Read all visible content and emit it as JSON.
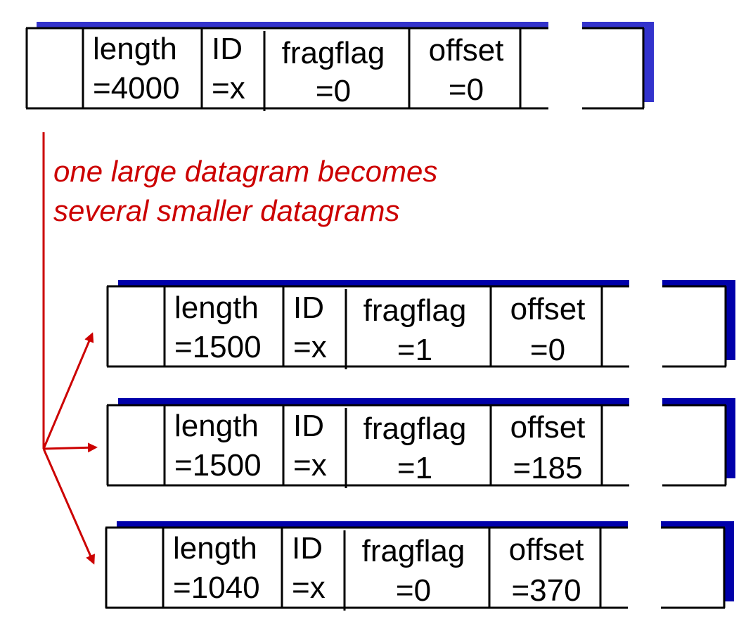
{
  "colors": {
    "shadow": "#0000aa",
    "shadow_top": "#3333cc",
    "border": "#000000",
    "arrow": "#cc0000",
    "caption": "#cc0000"
  },
  "original_datagram": {
    "length_label": "length",
    "length_value": "=4000",
    "id_label": "ID",
    "id_value": "=x",
    "fragflag_label": "fragflag",
    "fragflag_value": "=0",
    "offset_label": "offset",
    "offset_value": "=0"
  },
  "caption": {
    "line1": "one large datagram becomes",
    "line2": "several smaller datagrams"
  },
  "fragments": [
    {
      "length_label": "length",
      "length_value": "=1500",
      "id_label": "ID",
      "id_value": "=x",
      "fragflag_label": "fragflag",
      "fragflag_value": "=1",
      "offset_label": "offset",
      "offset_value": "=0"
    },
    {
      "length_label": "length",
      "length_value": "=1500",
      "id_label": "ID",
      "id_value": "=x",
      "fragflag_label": "fragflag",
      "fragflag_value": "=1",
      "offset_label": "offset",
      "offset_value": "=185"
    },
    {
      "length_label": "length",
      "length_value": "=1040",
      "id_label": "ID",
      "id_value": "=x",
      "fragflag_label": "fragflag",
      "fragflag_value": "=0",
      "offset_label": "offset",
      "offset_value": "=370"
    }
  ]
}
